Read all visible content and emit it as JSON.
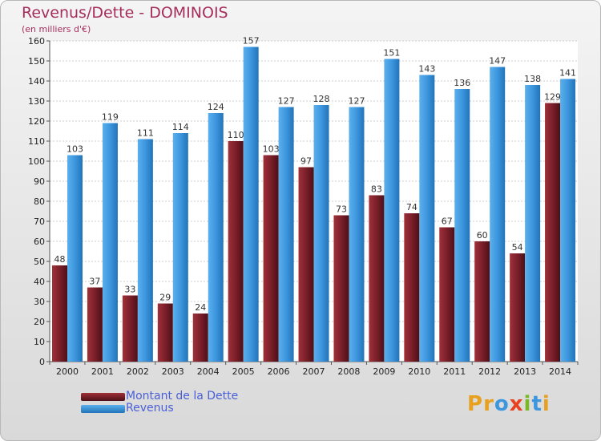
{
  "title": "Revenus/Dette - DOMINOIS",
  "subtitle": "(en milliers d'€)",
  "colors": {
    "debt": "#7a1f2a",
    "revenue": "#3d96de",
    "title": "#a62e5c",
    "legend_text": "#4a5fd8"
  },
  "legend": [
    {
      "label": "Montant de la Dette",
      "color_key": "debt"
    },
    {
      "label": "Revenus",
      "color_key": "revenue"
    }
  ],
  "logo": {
    "text": "Proxiti",
    "letter_colors": [
      "#e8a020",
      "#e8a020",
      "#3d96de",
      "#e84020",
      "#7ab828",
      "#3d96de",
      "#e8a020"
    ]
  },
  "chart_data": {
    "type": "bar",
    "categories": [
      "2000",
      "2001",
      "2002",
      "2003",
      "2004",
      "2005",
      "2006",
      "2007",
      "2008",
      "2009",
      "2010",
      "2011",
      "2012",
      "2013",
      "2014"
    ],
    "series": [
      {
        "name": "Montant de la Dette",
        "values": [
          48,
          37,
          33,
          29,
          24,
          110,
          103,
          97,
          73,
          83,
          74,
          67,
          60,
          54,
          129
        ]
      },
      {
        "name": "Revenus",
        "values": [
          103,
          119,
          111,
          114,
          124,
          157,
          127,
          128,
          127,
          151,
          143,
          136,
          147,
          138,
          141
        ]
      }
    ],
    "ylim": [
      0,
      160
    ],
    "yticks": [
      0,
      10,
      20,
      30,
      40,
      50,
      60,
      70,
      80,
      90,
      100,
      110,
      120,
      130,
      140,
      150,
      160
    ],
    "grid": true
  }
}
